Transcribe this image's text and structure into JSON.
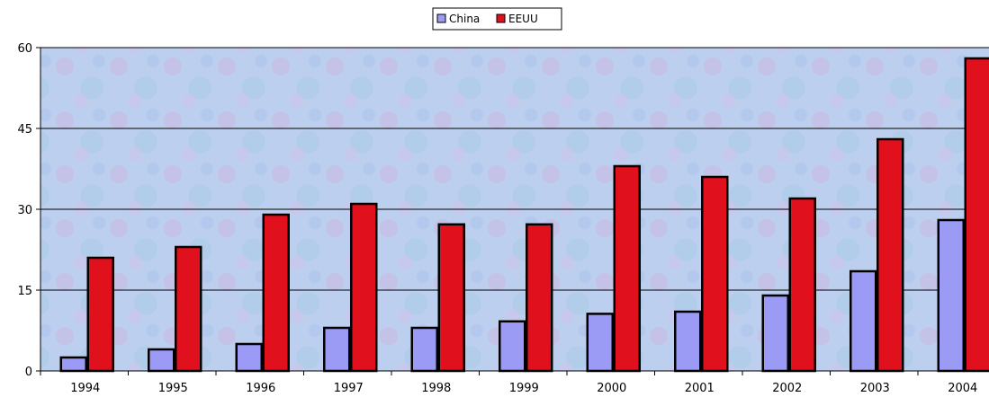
{
  "chart_data": {
    "type": "bar",
    "categories": [
      "1994",
      "1995",
      "1996",
      "1997",
      "1998",
      "1999",
      "2000",
      "2001",
      "2002",
      "2003",
      "2004"
    ],
    "series": [
      {
        "name": "China",
        "values": [
          2.5,
          4,
          5,
          8,
          8,
          9.2,
          10.6,
          11,
          14,
          18.5,
          28
        ],
        "color": "#9b9bf5"
      },
      {
        "name": "EEUU",
        "values": [
          21,
          23,
          29,
          31,
          27.2,
          27.2,
          38,
          36,
          32,
          43,
          58
        ],
        "color": "#e0101c"
      }
    ],
    "yticks": [
      0,
      15,
      30,
      45,
      60
    ],
    "ylim": [
      0,
      60
    ],
    "grid": true,
    "legend_position": "top-center",
    "plot_background": "#bcd0ec"
  }
}
